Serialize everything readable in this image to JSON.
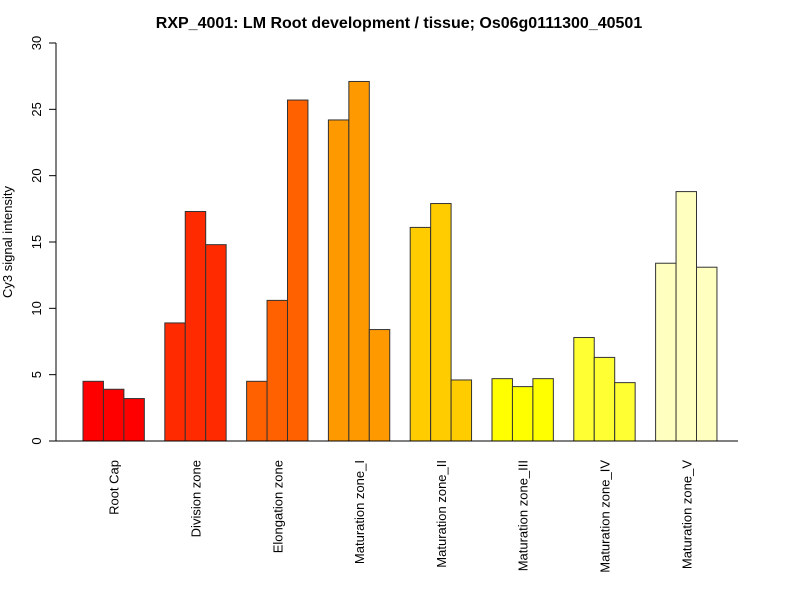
{
  "chart_data": {
    "type": "bar",
    "title": "RXP_4001: LM Root development / tissue; Os06g0111300_40501",
    "xlabel": "",
    "ylabel": "Cy3 signal intensity",
    "ylim": [
      0,
      30
    ],
    "yticks": [
      0,
      5,
      10,
      15,
      20,
      25,
      30
    ],
    "ytick_labels": [
      "0",
      "5",
      "10",
      "15",
      "20",
      "25",
      "30"
    ],
    "grid": false,
    "legend": "none",
    "replicates_per_group": 3,
    "categories": [
      "Root Cap",
      "Division zone",
      "Elongation zone",
      "Maturation zone_I",
      "Maturation zone_II",
      "Maturation zone_III",
      "Maturation zone_IV",
      "Maturation zone_V"
    ],
    "colors": [
      "#ff0000",
      "#ff2a00",
      "#ff6000",
      "#ff9900",
      "#ffcc00",
      "#ffff00",
      "#ffff33",
      "#ffffbf"
    ],
    "values": [
      [
        4.5,
        3.9,
        3.2
      ],
      [
        8.9,
        17.3,
        14.8
      ],
      [
        4.5,
        10.6,
        25.7
      ],
      [
        24.2,
        27.1,
        8.4
      ],
      [
        16.1,
        17.9,
        4.6
      ],
      [
        4.7,
        4.1,
        4.7
      ],
      [
        7.8,
        6.3,
        4.4
      ],
      [
        13.4,
        18.8,
        13.1
      ]
    ]
  }
}
